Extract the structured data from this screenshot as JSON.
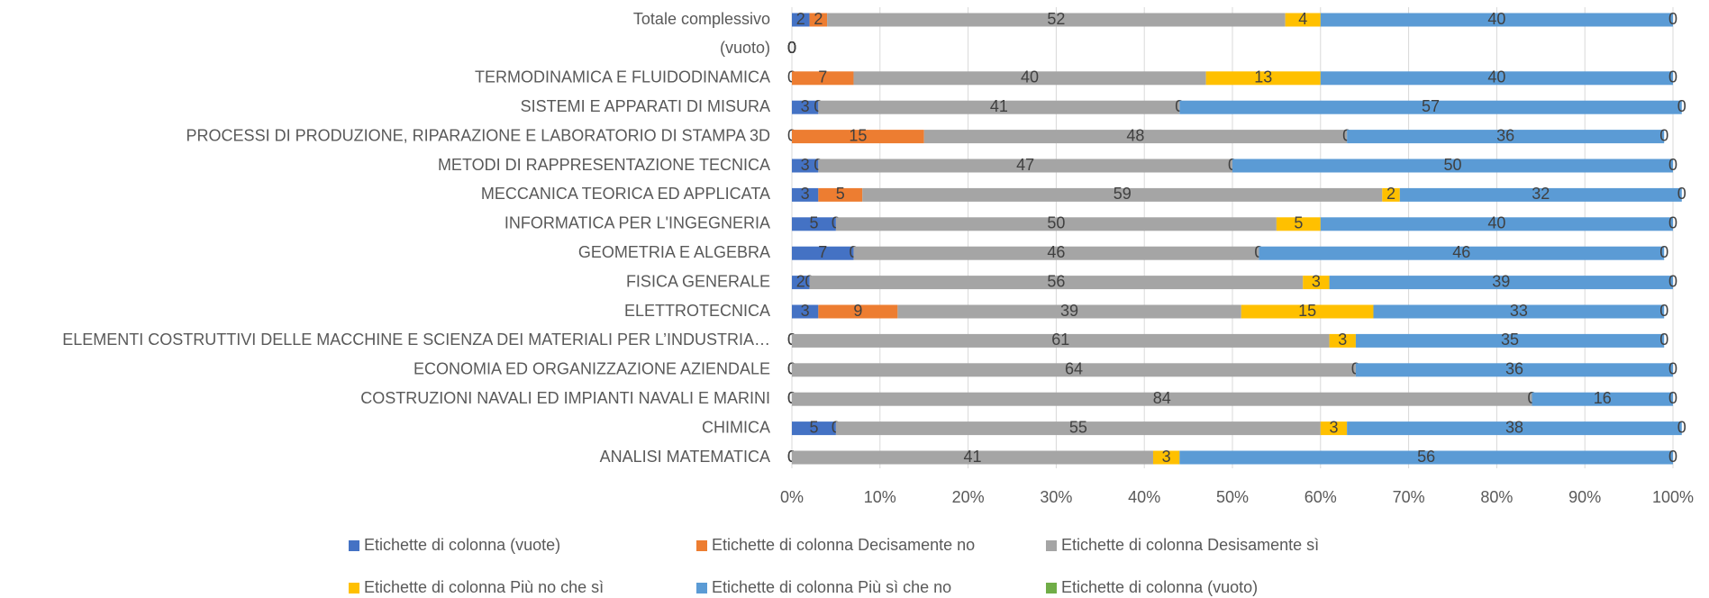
{
  "chart_data": {
    "type": "stacked_bar_horizontal",
    "categories": [
      "Totale complessivo",
      "(vuoto)",
      "TERMODINAMICA E FLUIDODINAMICA",
      "SISTEMI E  APPARATI DI MISURA",
      "PROCESSI DI PRODUZIONE, RIPARAZIONE E LABORATORIO DI STAMPA 3D",
      "METODI DI RAPPRESENTAZIONE TECNICA",
      "MECCANICA TEORICA ED APPLICATA",
      "INFORMATICA PER L'INGEGNERIA",
      "GEOMETRIA E ALGEBRA",
      "FISICA GENERALE",
      "ELETTROTECNICA",
      "ELEMENTI COSTRUTTIVI DELLE MACCHINE E SCIENZA DEI MATERIALI PER L’INDUSTRIA…",
      "ECONOMIA ED ORGANIZZAZIONE AZIENDALE",
      "COSTRUZIONI NAVALI ED IMPIANTI NAVALI E MARINI",
      "CHIMICA",
      "ANALISI MATEMATICA"
    ],
    "series": [
      {
        "name": "Etichette di colonna (vuote)",
        "color": "#4472c4",
        "values": [
          2,
          0,
          0,
          3,
          0,
          3,
          3,
          5,
          7,
          2,
          3,
          0,
          0,
          0,
          5,
          0
        ]
      },
      {
        "name": "Etichette di colonna Decisamente no",
        "color": "#ed7d31",
        "values": [
          2,
          0,
          7,
          0,
          15,
          0,
          5,
          0,
          0,
          0,
          9,
          0,
          0,
          0,
          0,
          0
        ]
      },
      {
        "name": "Etichette di colonna Desisamente sì",
        "color": "#a5a5a5",
        "values": [
          52,
          0,
          40,
          41,
          48,
          47,
          59,
          50,
          46,
          56,
          39,
          61,
          64,
          84,
          55,
          41
        ]
      },
      {
        "name": "Etichette di colonna Più no che sì",
        "color": "#ffc000",
        "values": [
          4,
          0,
          13,
          0,
          0,
          0,
          2,
          5,
          0,
          3,
          15,
          3,
          0,
          0,
          3,
          3
        ]
      },
      {
        "name": "Etichette di colonna Più sì che no",
        "color": "#5b9bd5",
        "values": [
          40,
          0,
          40,
          57,
          36,
          50,
          32,
          40,
          46,
          39,
          33,
          35,
          36,
          16,
          38,
          56
        ]
      },
      {
        "name": "Etichette di colonna (vuoto)",
        "color": "#70ad47",
        "values": [
          0,
          0,
          0,
          0,
          0,
          0,
          0,
          0,
          0,
          0,
          0,
          0,
          0,
          0,
          0,
          0
        ]
      }
    ],
    "xlim": [
      0,
      100
    ],
    "xticks": [
      {
        "value": 0,
        "label": "0%"
      },
      {
        "value": 10,
        "label": "10%"
      },
      {
        "value": 20,
        "label": "20%"
      },
      {
        "value": 30,
        "label": "30%"
      },
      {
        "value": 40,
        "label": "40%"
      },
      {
        "value": 50,
        "label": "50%"
      },
      {
        "value": 60,
        "label": "60%"
      },
      {
        "value": 70,
        "label": "70%"
      },
      {
        "value": 80,
        "label": "80%"
      },
      {
        "value": 90,
        "label": "90%"
      },
      {
        "value": 100,
        "label": "100%"
      }
    ],
    "grid": true,
    "legend": "bottom"
  }
}
